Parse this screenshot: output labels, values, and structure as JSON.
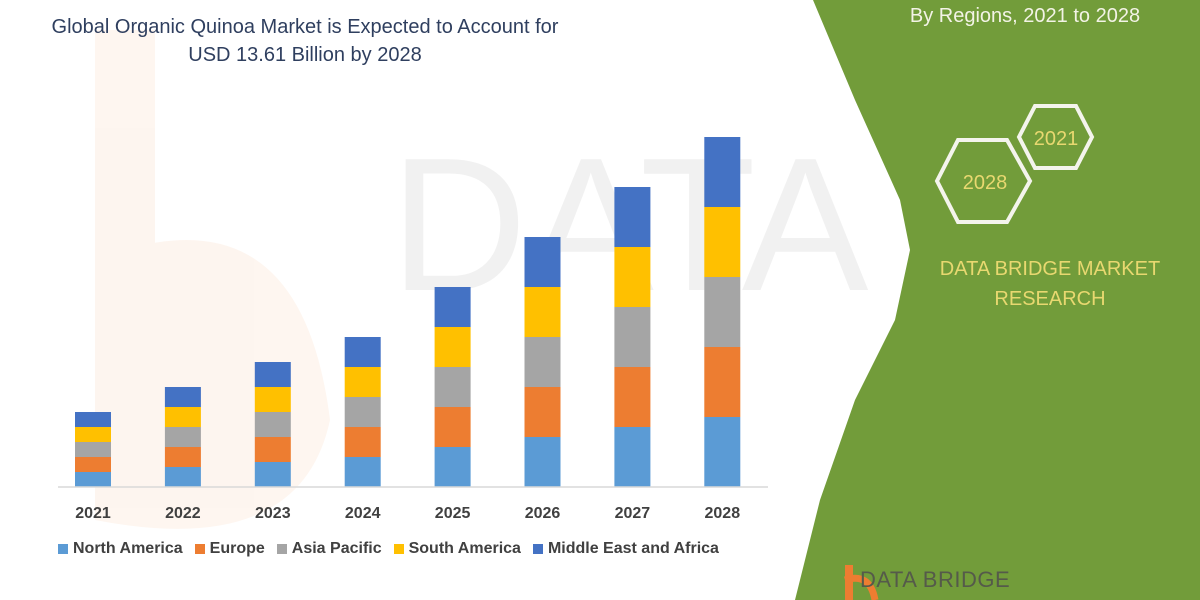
{
  "right_panel": {
    "subtitle": "By Regions, 2021 to 2028",
    "hex_labels": [
      "2021",
      "2028"
    ],
    "brand": "DATA BRIDGE MARKET RESEARCH",
    "logo_text": "DATA BRIDGE",
    "watermark": "DATA BRIDGE",
    "green": "#729C3A",
    "gold": "#E8D870"
  },
  "chart_data": {
    "type": "bar",
    "stacked": true,
    "title_lines": [
      "Global Organic Quinoa Market is Expected to Account for",
      "USD 13.61 Billion by 2028"
    ],
    "categories": [
      "2021",
      "2022",
      "2023",
      "2024",
      "2025",
      "2026",
      "2027",
      "2028"
    ],
    "series": [
      {
        "name": "North America",
        "color": "#5B9BD5",
        "values": [
          1.5,
          2,
          2.5,
          3,
          4,
          5,
          6,
          7
        ]
      },
      {
        "name": "Europe",
        "color": "#ED7D31",
        "values": [
          1.5,
          2,
          2.5,
          3,
          4,
          5,
          6,
          7
        ]
      },
      {
        "name": "Asia Pacific",
        "color": "#A5A5A5",
        "values": [
          1.5,
          2,
          2.5,
          3,
          4,
          5,
          6,
          7
        ]
      },
      {
        "name": "South America",
        "color": "#FFC000",
        "values": [
          1.5,
          2,
          2.5,
          3,
          4,
          5,
          6,
          7
        ]
      },
      {
        "name": "Middle East and Africa",
        "color": "#4472C4",
        "values": [
          1.5,
          2,
          2.5,
          3,
          4,
          5,
          6,
          7
        ]
      }
    ],
    "xlabel": "",
    "ylabel": "",
    "y_axis_shown": false,
    "grid": false,
    "legend_position": "bottom"
  }
}
